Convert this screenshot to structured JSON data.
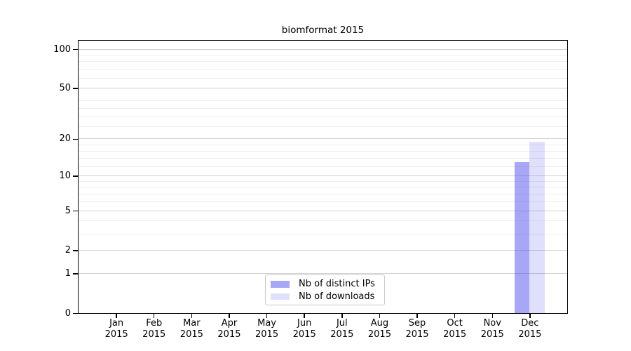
{
  "chart_data": {
    "type": "bar",
    "title": "biomformat 2015",
    "categories": [
      "Jan 2015",
      "Feb 2015",
      "Mar 2015",
      "Apr 2015",
      "May 2015",
      "Jun 2015",
      "Jul 2015",
      "Aug 2015",
      "Sep 2015",
      "Oct 2015",
      "Nov 2015",
      "Dec 2015"
    ],
    "series": [
      {
        "name": "Nb of distinct IPs",
        "values": [
          0,
          0,
          0,
          0,
          0,
          0,
          0,
          0,
          0,
          0,
          0,
          13
        ],
        "color_hex": "#a9a9f0",
        "css_color": "rgba(60,60,235,0.45)"
      },
      {
        "name": "Nb of downloads",
        "values": [
          0,
          0,
          0,
          0,
          0,
          0,
          0,
          0,
          0,
          0,
          0,
          19
        ],
        "color_hex": "#dedef8",
        "css_color": "rgba(60,60,235,0.16)"
      }
    ],
    "xlabel": "",
    "ylabel": "",
    "yscale": "log1p",
    "ylim": [
      0,
      115
    ],
    "yticks": [
      0,
      1,
      2,
      5,
      10,
      20,
      50,
      100
    ],
    "minor_gridlines": [
      3,
      4,
      6,
      7,
      8,
      9,
      12,
      14,
      16,
      18,
      25,
      30,
      35,
      40,
      60,
      70,
      80,
      90
    ],
    "grid": true,
    "legend_position": "bottom-center",
    "frame": true
  },
  "colors": {
    "background": "#ffffff",
    "axis_frame": "#000000",
    "major_gridline": "#cfcfcf",
    "minor_gridline": "#ededed",
    "legend_border": "#c9c9c9",
    "bar_distinct_ips": "#a9a9f0",
    "bar_downloads": "#dedef8"
  }
}
